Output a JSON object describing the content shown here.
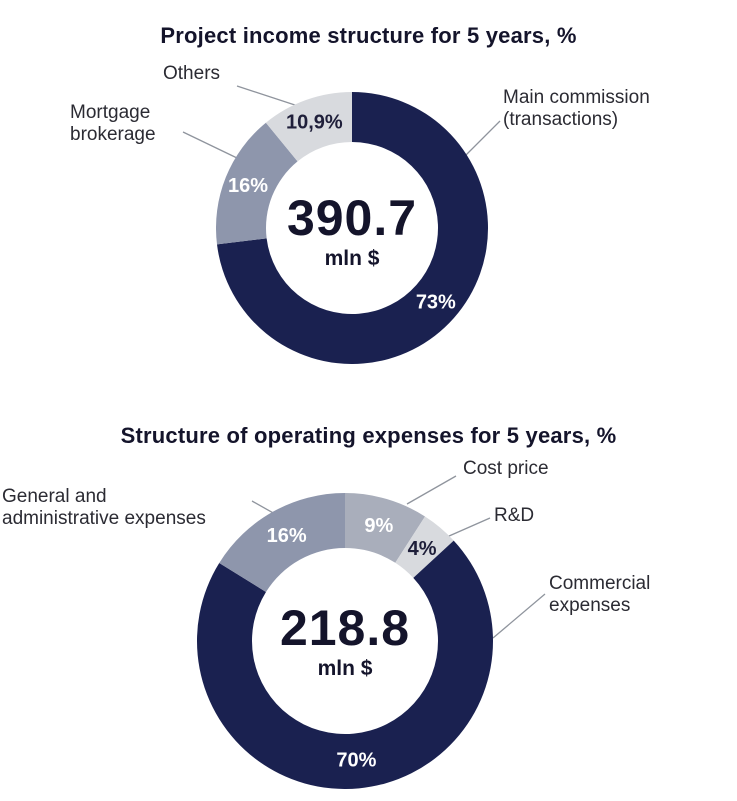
{
  "chart_data": [
    {
      "type": "pie",
      "variant": "donut",
      "title": "Project income structure for 5 years, %",
      "center": {
        "value": "390.7",
        "unit": "mln $"
      },
      "legend_position": "callout-labels",
      "segments": [
        {
          "label": "Main commission (transactions)",
          "label_lines": [
            "Main commission",
            "(transactions)"
          ],
          "value": 73,
          "display": "73%",
          "color": "#1a2150",
          "value_label_color": "#ffffff"
        },
        {
          "label": "Mortgage brokerage",
          "label_lines": [
            "Mortgage",
            "brokerage"
          ],
          "value": 16,
          "display": "16%",
          "color": "#8e96ac",
          "value_label_color": "#ffffff"
        },
        {
          "label": "Others",
          "label_lines": [
            "Others"
          ],
          "value": 10.9,
          "display": "10,9%",
          "color": "#d8dade",
          "value_label_color": "#1f1f3a"
        }
      ]
    },
    {
      "type": "pie",
      "variant": "donut",
      "title": "Structure of operating expenses for 5 years, %",
      "center": {
        "value": "218.8",
        "unit": "mln $"
      },
      "legend_position": "callout-labels",
      "segments": [
        {
          "label": "Cost price",
          "label_lines": [
            "Cost price"
          ],
          "value": 9,
          "display": "9%",
          "color": "#a9aebb",
          "value_label_color": "#ffffff"
        },
        {
          "label": "R&D",
          "label_lines": [
            "R&D"
          ],
          "value": 4,
          "display": "4%",
          "color": "#d8dade",
          "value_label_color": "#1f1f3a"
        },
        {
          "label": "Commercial expenses",
          "label_lines": [
            "Commercial",
            "expenses"
          ],
          "value": 70,
          "display": "70%",
          "color": "#1a2150",
          "value_label_color": "#ffffff"
        },
        {
          "label": "General and administrative expenses",
          "label_lines": [
            "General and",
            "administrative expenses"
          ],
          "value": 16,
          "display": "16%",
          "color": "#8e96ac",
          "value_label_color": "#ffffff"
        }
      ]
    }
  ]
}
